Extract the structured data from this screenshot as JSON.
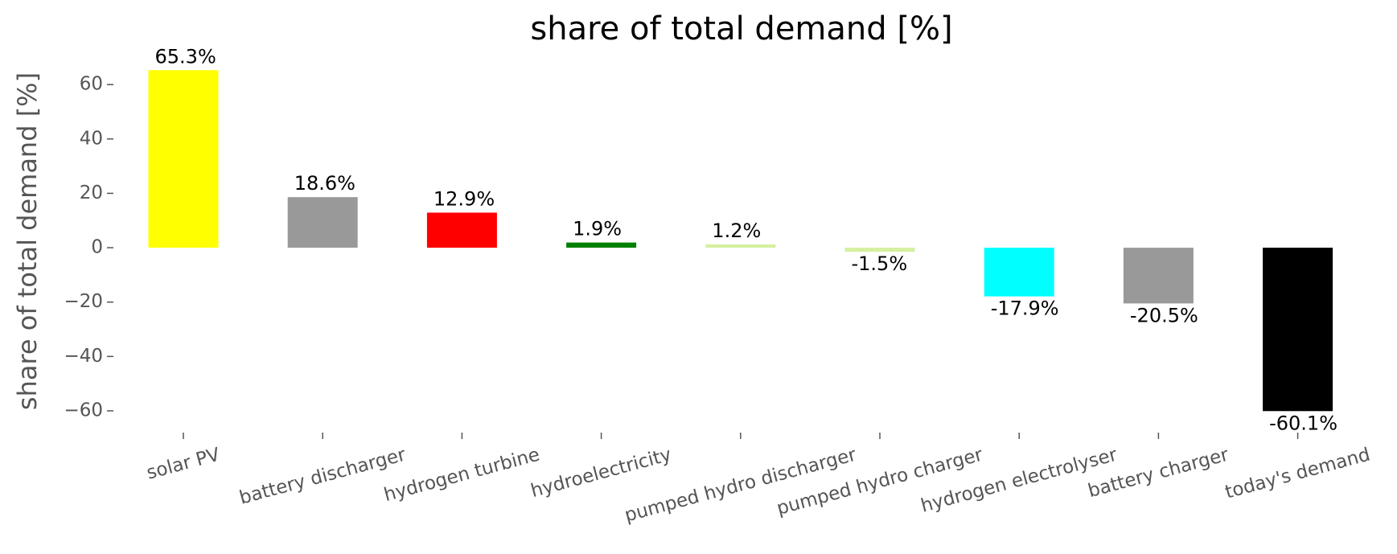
{
  "chart_data": {
    "type": "bar",
    "title": "share of total demand [%]",
    "ylabel": "share of total demand [%]",
    "categories": [
      "solar PV",
      "battery discharger",
      "hydrogen turbine",
      "hydroelectricity",
      "pumped hydro discharger",
      "pumped hydro charger",
      "hydrogen electrolyser",
      "battery charger",
      "today's demand"
    ],
    "values": [
      65.3,
      18.6,
      12.9,
      1.9,
      1.2,
      -1.5,
      -17.9,
      -20.5,
      -60.1
    ],
    "value_labels": [
      "65.3%",
      "18.6%",
      "12.9%",
      "1.9%",
      "1.2%",
      "-1.5%",
      "-17.9%",
      "-20.5%",
      "-60.1%"
    ],
    "colors": [
      "#ffff00",
      "#999999",
      "#ff0000",
      "#008000",
      "#d4f0a0",
      "#d4f0a0",
      "#00ffff",
      "#999999",
      "#000000"
    ],
    "ylim": [
      -68,
      71
    ],
    "yticks": [
      {
        "value": -60,
        "label": "−60"
      },
      {
        "value": -40,
        "label": "−40"
      },
      {
        "value": -20,
        "label": "−20"
      },
      0,
      20,
      40,
      60
    ],
    "grid": false
  }
}
